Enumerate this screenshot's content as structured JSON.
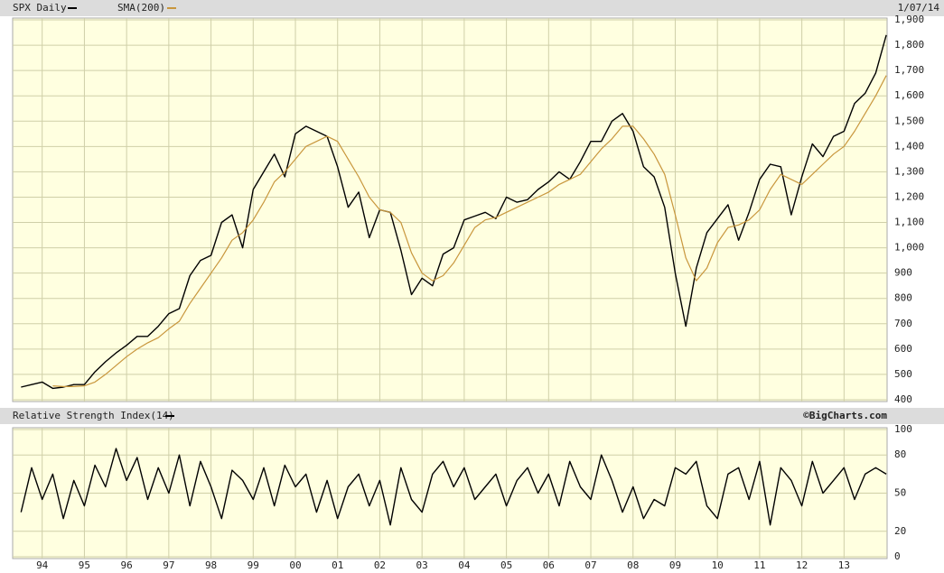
{
  "chart_data": [
    {
      "type": "line",
      "date": "1/07/14",
      "x": [
        1993.5,
        1993.75,
        1994,
        1994.25,
        1994.5,
        1994.75,
        1995,
        1995.25,
        1995.5,
        1995.75,
        1996,
        1996.25,
        1996.5,
        1996.75,
        1997,
        1997.25,
        1997.5,
        1997.75,
        1998,
        1998.25,
        1998.5,
        1998.75,
        1999,
        1999.25,
        1999.5,
        1999.75,
        2000,
        2000.25,
        2000.5,
        2000.75,
        2001,
        2001.25,
        2001.5,
        2001.75,
        2002,
        2002.25,
        2002.5,
        2002.75,
        2003,
        2003.25,
        2003.5,
        2003.75,
        2004,
        2004.25,
        2004.5,
        2004.75,
        2005,
        2005.25,
        2005.5,
        2005.75,
        2006,
        2006.25,
        2006.5,
        2006.75,
        2007,
        2007.25,
        2007.5,
        2007.75,
        2008,
        2008.25,
        2008.5,
        2008.75,
        2009,
        2009.25,
        2009.5,
        2009.75,
        2010,
        2010.25,
        2010.5,
        2010.75,
        2011,
        2011.25,
        2011.5,
        2011.75,
        2012,
        2012.25,
        2012.5,
        2012.75,
        2013,
        2013.25,
        2013.5,
        2013.75,
        2014
      ],
      "series": [
        {
          "name": "SPX Daily",
          "color": "#000000",
          "values": [
            450,
            460,
            470,
            445,
            450,
            460,
            460,
            510,
            550,
            585,
            615,
            650,
            650,
            690,
            740,
            760,
            890,
            950,
            970,
            1100,
            1130,
            1000,
            1230,
            1300,
            1370,
            1280,
            1450,
            1480,
            1460,
            1440,
            1320,
            1160,
            1220,
            1040,
            1150,
            1140,
            990,
            815,
            880,
            850,
            975,
            1000,
            1110,
            1125,
            1140,
            1115,
            1200,
            1180,
            1190,
            1230,
            1260,
            1300,
            1270,
            1340,
            1420,
            1420,
            1500,
            1530,
            1460,
            1320,
            1280,
            1160,
            900,
            690,
            920,
            1060,
            1115,
            1170,
            1030,
            1140,
            1270,
            1330,
            1320,
            1130,
            1280,
            1410,
            1360,
            1440,
            1460,
            1570,
            1610,
            1690,
            1840
          ]
        },
        {
          "name": "SMA(200)",
          "color": "#c8963c",
          "values": [
            null,
            null,
            null,
            455,
            452,
            452,
            455,
            470,
            500,
            535,
            570,
            600,
            625,
            645,
            680,
            710,
            780,
            840,
            900,
            960,
            1030,
            1060,
            1110,
            1180,
            1260,
            1300,
            1350,
            1400,
            1420,
            1440,
            1420,
            1350,
            1280,
            1200,
            1150,
            1140,
            1100,
            980,
            900,
            870,
            890,
            940,
            1010,
            1080,
            1110,
            1120,
            1140,
            1160,
            1180,
            1200,
            1220,
            1250,
            1270,
            1290,
            1340,
            1390,
            1430,
            1480,
            1480,
            1430,
            1370,
            1290,
            1130,
            960,
            870,
            920,
            1020,
            1080,
            1090,
            1110,
            1150,
            1230,
            1290,
            1270,
            1250,
            1290,
            1330,
            1370,
            1400,
            1460,
            1530,
            1600,
            1680
          ]
        }
      ],
      "xlim": [
        1993.3,
        2014.02
      ],
      "ylim": [
        400,
        1900
      ],
      "yticks": [
        400,
        500,
        600,
        700,
        800,
        900,
        {
          "value": 1000,
          "label": "1,000"
        },
        {
          "value": 1100,
          "label": "1,100"
        },
        {
          "value": 1200,
          "label": "1,200"
        },
        {
          "value": 1300,
          "label": "1,300"
        },
        {
          "value": 1400,
          "label": "1,400"
        },
        {
          "value": 1500,
          "label": "1,500"
        },
        {
          "value": 1600,
          "label": "1,600"
        },
        {
          "value": 1700,
          "label": "1,700"
        },
        {
          "value": 1800,
          "label": "1,800"
        },
        {
          "value": 1900,
          "label": "1,900"
        }
      ],
      "grid": true
    },
    {
      "type": "line",
      "credit": "©BigCharts.com",
      "x": [
        1993.5,
        1993.75,
        1994,
        1994.25,
        1994.5,
        1994.75,
        1995,
        1995.25,
        1995.5,
        1995.75,
        1996,
        1996.25,
        1996.5,
        1996.75,
        1997,
        1997.25,
        1997.5,
        1997.75,
        1998,
        1998.25,
        1998.5,
        1998.75,
        1999,
        1999.25,
        1999.5,
        1999.75,
        2000,
        2000.25,
        2000.5,
        2000.75,
        2001,
        2001.25,
        2001.5,
        2001.75,
        2002,
        2002.25,
        2002.5,
        2002.75,
        2003,
        2003.25,
        2003.5,
        2003.75,
        2004,
        2004.25,
        2004.5,
        2004.75,
        2005,
        2005.25,
        2005.5,
        2005.75,
        2006,
        2006.25,
        2006.5,
        2006.75,
        2007,
        2007.25,
        2007.5,
        2007.75,
        2008,
        2008.25,
        2008.5,
        2008.75,
        2009,
        2009.25,
        2009.5,
        2009.75,
        2010,
        2010.25,
        2010.5,
        2010.75,
        2011,
        2011.25,
        2011.5,
        2011.75,
        2012,
        2012.25,
        2012.5,
        2012.75,
        2013,
        2013.25,
        2013.5,
        2013.75,
        2014
      ],
      "series": [
        {
          "name": "Relative Strength Index(14)",
          "color": "#000000",
          "values": [
            35,
            70,
            45,
            65,
            30,
            60,
            40,
            72,
            55,
            85,
            60,
            78,
            45,
            70,
            50,
            80,
            40,
            75,
            55,
            30,
            68,
            60,
            45,
            70,
            40,
            72,
            55,
            65,
            35,
            60,
            30,
            55,
            65,
            40,
            60,
            25,
            70,
            45,
            35,
            65,
            75,
            55,
            70,
            45,
            55,
            65,
            40,
            60,
            70,
            50,
            65,
            40,
            75,
            55,
            45,
            80,
            60,
            35,
            55,
            30,
            45,
            40,
            70,
            65,
            75,
            40,
            30,
            65,
            70,
            45,
            75,
            25,
            70,
            60,
            40,
            75,
            50,
            60,
            70,
            45,
            65,
            70,
            65
          ]
        }
      ],
      "xlim": [
        1993.3,
        2014.02
      ],
      "xticks": [
        {
          "value": 1994,
          "label": "94"
        },
        {
          "value": 1995,
          "label": "95"
        },
        {
          "value": 1996,
          "label": "96"
        },
        {
          "value": 1997,
          "label": "97"
        },
        {
          "value": 1998,
          "label": "98"
        },
        {
          "value": 1999,
          "label": "99"
        },
        {
          "value": 2000,
          "label": "00"
        },
        {
          "value": 2001,
          "label": "01"
        },
        {
          "value": 2002,
          "label": "02"
        },
        {
          "value": 2003,
          "label": "03"
        },
        {
          "value": 2004,
          "label": "04"
        },
        {
          "value": 2005,
          "label": "05"
        },
        {
          "value": 2006,
          "label": "06"
        },
        {
          "value": 2007,
          "label": "07"
        },
        {
          "value": 2008,
          "label": "08"
        },
        {
          "value": 2009,
          "label": "09"
        },
        {
          "value": 2010,
          "label": "10"
        },
        {
          "value": 2011,
          "label": "11"
        },
        {
          "value": 2012,
          "label": "12"
        },
        {
          "value": 2013,
          "label": "13"
        }
      ],
      "ylim": [
        0,
        100
      ],
      "yticks": [
        0,
        20,
        50,
        80,
        100
      ],
      "grid": true
    }
  ]
}
